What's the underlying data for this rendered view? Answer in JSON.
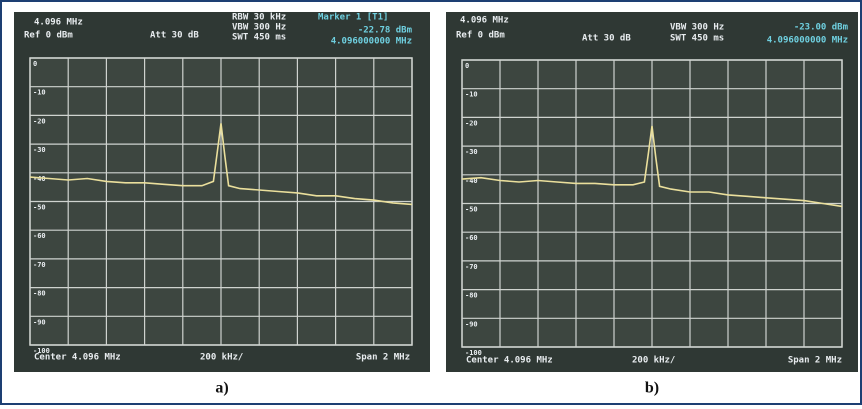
{
  "chart_data": [
    {
      "type": "line",
      "color": "#eadf9c",
      "x": [
        3.096,
        3.196,
        3.296,
        3.396,
        3.496,
        3.596,
        3.696,
        3.796,
        3.896,
        3.996,
        4.056,
        4.076,
        4.096,
        4.116,
        4.136,
        4.196,
        4.296,
        4.396,
        4.496,
        4.596,
        4.696,
        4.796,
        4.896,
        4.996,
        5.096
      ],
      "values": [
        -41.5,
        -42,
        -42.5,
        -42,
        -43,
        -43.5,
        -43.5,
        -44,
        -44.5,
        -44.5,
        -43,
        -33,
        -22.78,
        -34,
        -44.5,
        -45.5,
        -46,
        -46.5,
        -47,
        -48,
        -48,
        -49,
        -49.5,
        -50.5,
        -51
      ],
      "xlim": [
        3.096,
        5.096
      ],
      "ylim": [
        -100,
        0
      ],
      "yticks": [
        0,
        -10,
        -20,
        -30,
        -40,
        -50,
        -60,
        -70,
        -80,
        -90,
        -100
      ],
      "grid": true
    },
    {
      "type": "line",
      "color": "#eadf9c",
      "x": [
        3.096,
        3.196,
        3.296,
        3.396,
        3.496,
        3.596,
        3.696,
        3.796,
        3.896,
        3.996,
        4.056,
        4.076,
        4.096,
        4.116,
        4.136,
        4.196,
        4.296,
        4.396,
        4.496,
        4.596,
        4.696,
        4.796,
        4.896,
        4.996,
        5.096
      ],
      "values": [
        -41.5,
        -41,
        -42,
        -42.5,
        -42,
        -42.5,
        -43,
        -43,
        -43.5,
        -43.5,
        -42.5,
        -33,
        -23,
        -34,
        -44,
        -45,
        -46,
        -46,
        -47,
        -47.5,
        -48,
        -48.5,
        -49,
        -50,
        -51
      ],
      "xlim": [
        3.096,
        5.096
      ],
      "ylim": [
        -100,
        0
      ],
      "yticks": [
        0,
        -10,
        -20,
        -30,
        -40,
        -50,
        -60,
        -70,
        -80,
        -90,
        -100
      ],
      "grid": true
    }
  ],
  "panels": [
    {
      "freq": "4.096 MHz",
      "ref": "Ref 0 dBm",
      "att": "Att 30 dB",
      "rbw": "RBW 30 kHz",
      "vbw": "VBW 300 Hz",
      "swt": "SWT 450 ms",
      "marker": "Marker 1 [T1]",
      "level": "-22.78 dBm",
      "mfreq": "4.096000000 MHz",
      "center": "Center 4.096 MHz",
      "div": "200 kHz/",
      "span": "Span 2 MHz",
      "caption": "a)"
    },
    {
      "freq": "4.096 MHz",
      "ref": "Ref 0 dBm",
      "att": "Att 30 dB",
      "vbw": "VBW 300 Hz",
      "swt": "SWT 450 ms",
      "level": "-23.00 dBm",
      "mfreq": "4.096000000 MHz",
      "center": "Center 4.096 MHz",
      "div": "200 kHz/",
      "span": "Span 2 MHz",
      "caption": "b)"
    }
  ]
}
